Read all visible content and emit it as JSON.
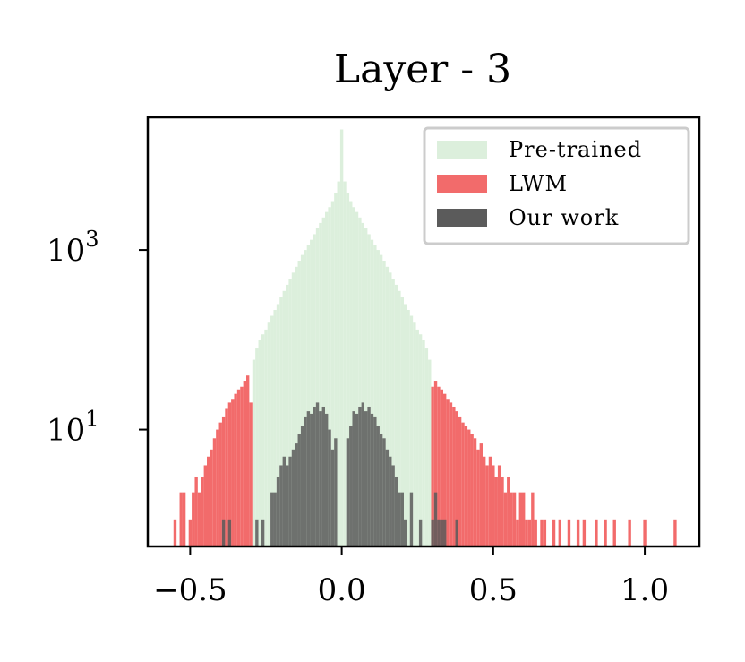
{
  "chart_data": {
    "type": "histogram",
    "title": "Layer - 3",
    "xlabel": "",
    "ylabel": "",
    "yscale": "log",
    "xlim": [
      -0.64,
      1.18
    ],
    "ylim": [
      0.5,
      30000
    ],
    "x_ticks": [
      {
        "value": -0.5,
        "label": "−0.5"
      },
      {
        "value": 0.0,
        "label": "0.0"
      },
      {
        "value": 0.5,
        "label": "0.5"
      },
      {
        "value": 1.0,
        "label": "1.0"
      }
    ],
    "y_ticks": [
      {
        "value": 10,
        "base": "10",
        "exp": "1"
      },
      {
        "value": 1000,
        "base": "10",
        "exp": "3"
      }
    ],
    "bin_width": 0.01,
    "legend": {
      "position": "top-right"
    },
    "series": [
      {
        "name": "Pre-trained",
        "color": "#dcefdc",
        "bins": [
          [
            -0.29,
            60
          ],
          [
            -0.28,
            80
          ],
          [
            -0.27,
            100
          ],
          [
            -0.26,
            115
          ],
          [
            -0.25,
            130
          ],
          [
            -0.24,
            155
          ],
          [
            -0.23,
            185
          ],
          [
            -0.22,
            215
          ],
          [
            -0.21,
            250
          ],
          [
            -0.2,
            300
          ],
          [
            -0.19,
            350
          ],
          [
            -0.18,
            410
          ],
          [
            -0.17,
            480
          ],
          [
            -0.16,
            560
          ],
          [
            -0.15,
            650
          ],
          [
            -0.14,
            760
          ],
          [
            -0.13,
            880
          ],
          [
            -0.12,
            1000
          ],
          [
            -0.11,
            1150
          ],
          [
            -0.1,
            1300
          ],
          [
            -0.09,
            1500
          ],
          [
            -0.08,
            1750
          ],
          [
            -0.07,
            2000
          ],
          [
            -0.06,
            2300
          ],
          [
            -0.05,
            2650
          ],
          [
            -0.04,
            3000
          ],
          [
            -0.03,
            3500
          ],
          [
            -0.02,
            4300
          ],
          [
            -0.01,
            5800
          ],
          [
            0.0,
            22000
          ],
          [
            0.01,
            5800
          ],
          [
            0.02,
            4300
          ],
          [
            0.03,
            3500
          ],
          [
            0.04,
            3000
          ],
          [
            0.05,
            2650
          ],
          [
            0.06,
            2300
          ],
          [
            0.07,
            2000
          ],
          [
            0.08,
            1750
          ],
          [
            0.09,
            1500
          ],
          [
            0.1,
            1300
          ],
          [
            0.11,
            1150
          ],
          [
            0.12,
            1000
          ],
          [
            0.13,
            880
          ],
          [
            0.14,
            760
          ],
          [
            0.15,
            650
          ],
          [
            0.16,
            560
          ],
          [
            0.17,
            480
          ],
          [
            0.18,
            410
          ],
          [
            0.19,
            350
          ],
          [
            0.2,
            300
          ],
          [
            0.21,
            250
          ],
          [
            0.22,
            215
          ],
          [
            0.23,
            185
          ],
          [
            0.24,
            155
          ],
          [
            0.25,
            130
          ],
          [
            0.26,
            115
          ],
          [
            0.27,
            100
          ],
          [
            0.28,
            80
          ],
          [
            0.29,
            60
          ]
        ]
      },
      {
        "name": "LWM",
        "color": "#f26b6b",
        "bins": [
          [
            -0.55,
            1
          ],
          [
            -0.53,
            2
          ],
          [
            -0.52,
            2
          ],
          [
            -0.5,
            1
          ],
          [
            -0.49,
            2
          ],
          [
            -0.48,
            3
          ],
          [
            -0.47,
            2
          ],
          [
            -0.46,
            3
          ],
          [
            -0.45,
            4
          ],
          [
            -0.44,
            5
          ],
          [
            -0.43,
            6
          ],
          [
            -0.42,
            8
          ],
          [
            -0.41,
            10
          ],
          [
            -0.4,
            12
          ],
          [
            -0.39,
            14
          ],
          [
            -0.38,
            17
          ],
          [
            -0.37,
            20
          ],
          [
            -0.36,
            22
          ],
          [
            -0.35,
            25
          ],
          [
            -0.34,
            28
          ],
          [
            -0.33,
            30
          ],
          [
            -0.32,
            35
          ],
          [
            -0.31,
            40
          ],
          [
            -0.3,
            20
          ],
          [
            0.3,
            30
          ],
          [
            0.31,
            35
          ],
          [
            0.32,
            30
          ],
          [
            0.33,
            28
          ],
          [
            0.34,
            25
          ],
          [
            0.35,
            22
          ],
          [
            0.36,
            20
          ],
          [
            0.37,
            18
          ],
          [
            0.38,
            16
          ],
          [
            0.39,
            14
          ],
          [
            0.4,
            12
          ],
          [
            0.41,
            11
          ],
          [
            0.42,
            10
          ],
          [
            0.43,
            9
          ],
          [
            0.44,
            8
          ],
          [
            0.45,
            6
          ],
          [
            0.46,
            7
          ],
          [
            0.47,
            5
          ],
          [
            0.48,
            4
          ],
          [
            0.49,
            5
          ],
          [
            0.5,
            4
          ],
          [
            0.51,
            3
          ],
          [
            0.52,
            4
          ],
          [
            0.53,
            3
          ],
          [
            0.54,
            2
          ],
          [
            0.55,
            3
          ],
          [
            0.56,
            2
          ],
          [
            0.57,
            2
          ],
          [
            0.58,
            1
          ],
          [
            0.59,
            2
          ],
          [
            0.6,
            2
          ],
          [
            0.61,
            1
          ],
          [
            0.62,
            1
          ],
          [
            0.63,
            2
          ],
          [
            0.64,
            1
          ],
          [
            0.66,
            1
          ],
          [
            0.67,
            1
          ],
          [
            0.7,
            1
          ],
          [
            0.72,
            1
          ],
          [
            0.75,
            1
          ],
          [
            0.78,
            1
          ],
          [
            0.8,
            1
          ],
          [
            0.84,
            1
          ],
          [
            0.87,
            1
          ],
          [
            0.9,
            1
          ],
          [
            0.95,
            1
          ],
          [
            1.0,
            1
          ],
          [
            1.1,
            1
          ]
        ]
      },
      {
        "name": "Our work",
        "color": "#5b5b5b",
        "bins": [
          [
            -0.39,
            1
          ],
          [
            -0.37,
            1
          ],
          [
            -0.28,
            1
          ],
          [
            -0.26,
            1
          ],
          [
            -0.23,
            2
          ],
          [
            -0.22,
            2
          ],
          [
            -0.21,
            3
          ],
          [
            -0.2,
            4
          ],
          [
            -0.19,
            5
          ],
          [
            -0.18,
            4
          ],
          [
            -0.17,
            5
          ],
          [
            -0.16,
            6
          ],
          [
            -0.15,
            7
          ],
          [
            -0.14,
            9
          ],
          [
            -0.13,
            11
          ],
          [
            -0.12,
            14
          ],
          [
            -0.11,
            16
          ],
          [
            -0.1,
            15
          ],
          [
            -0.09,
            18
          ],
          [
            -0.08,
            20
          ],
          [
            -0.07,
            16
          ],
          [
            -0.06,
            18
          ],
          [
            -0.05,
            15
          ],
          [
            -0.04,
            10
          ],
          [
            -0.03,
            6
          ],
          [
            -0.02,
            8
          ],
          [
            0.02,
            8
          ],
          [
            0.03,
            11
          ],
          [
            0.04,
            16
          ],
          [
            0.05,
            15
          ],
          [
            0.06,
            18
          ],
          [
            0.07,
            20
          ],
          [
            0.08,
            16
          ],
          [
            0.09,
            18
          ],
          [
            0.1,
            15
          ],
          [
            0.11,
            14
          ],
          [
            0.12,
            11
          ],
          [
            0.13,
            9
          ],
          [
            0.14,
            8
          ],
          [
            0.15,
            6
          ],
          [
            0.16,
            5
          ],
          [
            0.17,
            4
          ],
          [
            0.18,
            3
          ],
          [
            0.19,
            2
          ],
          [
            0.2,
            2
          ],
          [
            0.21,
            1
          ],
          [
            0.23,
            2
          ],
          [
            0.26,
            1
          ],
          [
            0.3,
            1
          ],
          [
            0.31,
            2
          ],
          [
            0.32,
            1
          ],
          [
            0.33,
            1
          ],
          [
            0.34,
            1
          ],
          [
            0.38,
            1
          ]
        ]
      }
    ]
  }
}
